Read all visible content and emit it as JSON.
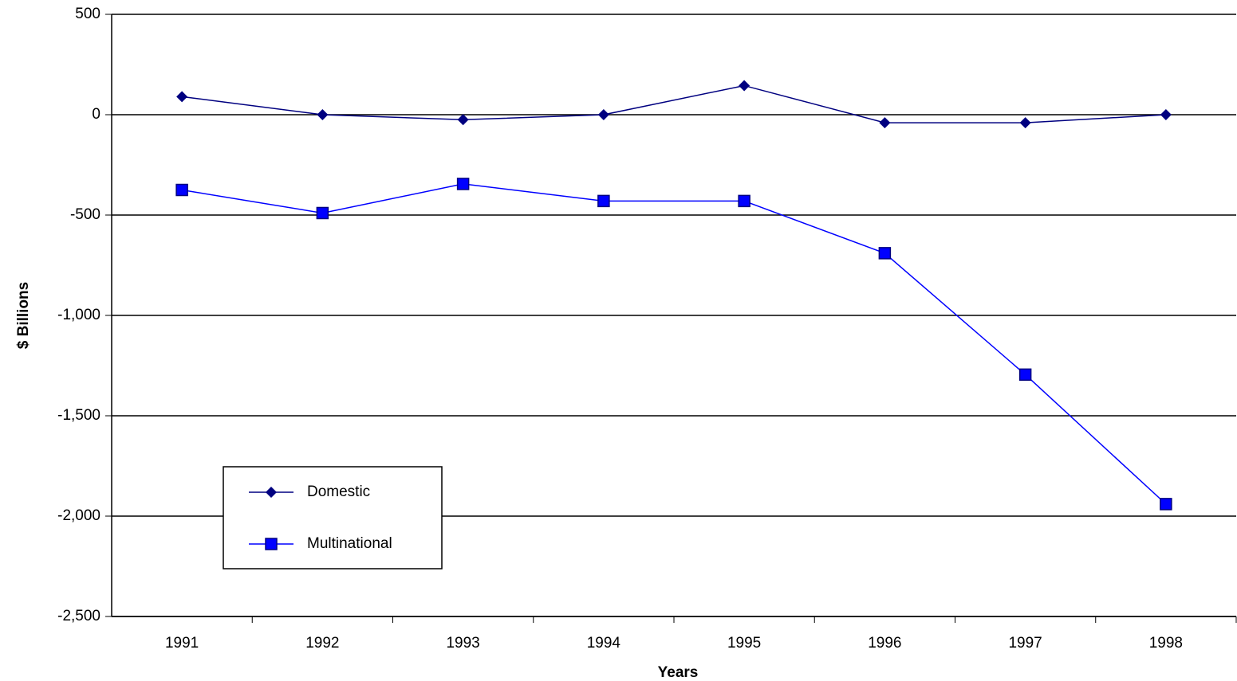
{
  "chart_data": {
    "type": "line",
    "categories": [
      "1991",
      "1992",
      "1993",
      "1994",
      "1995",
      "1996",
      "1997",
      "1998"
    ],
    "series": [
      {
        "name": "Domestic",
        "color": "#000080",
        "marker": "diamond",
        "values": [
          90,
          0,
          -25,
          0,
          145,
          -40,
          -40,
          0
        ]
      },
      {
        "name": "Multinational",
        "color": "#0000ff",
        "marker": "square",
        "values": [
          -375,
          -490,
          -345,
          -430,
          -430,
          -690,
          -1295,
          -1940
        ]
      }
    ],
    "x_label": "Years",
    "y_label": "$ Billions",
    "ylim": [
      -2500,
      500
    ],
    "yticks": [
      {
        "value": -2500,
        "label": "-2,500"
      },
      {
        "value": -2000,
        "label": "-2,000"
      },
      {
        "value": -1500,
        "label": "-1,500"
      },
      {
        "value": -1000,
        "label": "-1,000"
      },
      -500,
      0,
      500
    ],
    "grid": true,
    "legend": "lower-left"
  }
}
